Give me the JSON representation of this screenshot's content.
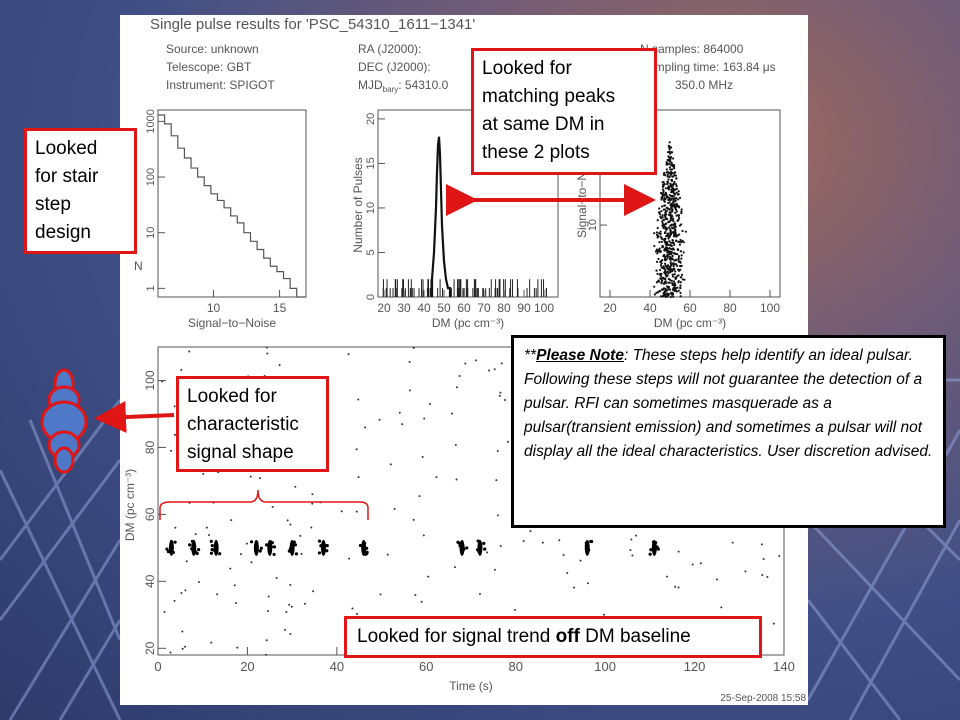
{
  "header": {
    "title": "Single pulse results for 'PSC_54310_1611−1341'",
    "left_info": [
      "Source: unknown",
      "Telescope: GBT",
      "Instrument: SPIGOT"
    ],
    "mid_info": [
      "RA (J2000):",
      "DEC (J2000):",
      "MJD"
    ],
    "mjd_sub": "bary",
    "mjd_value": ": 54310.0",
    "right_info": [
      "N samples: 864000",
      "Sampling time: 163.84 μs",
      "350.0 MHz"
    ]
  },
  "timestamp": "25-Sep-2008 15:58",
  "callouts": {
    "stair": [
      "Looked",
      "for stair",
      "step",
      "design"
    ],
    "peaks": [
      "Looked for",
      "matching peaks",
      "at same DM in",
      "these 2 plots"
    ],
    "shape": [
      "Looked for",
      "characteristic",
      "signal shape"
    ],
    "trend_prefix": "Looked for signal trend ",
    "trend_bold": "off",
    "trend_suffix": " DM baseline"
  },
  "note": {
    "prefix": "**",
    "highlight": "Please Note",
    "body": ":  These steps help identify an ideal pulsar.  Following these steps will not guarantee the detection of a pulsar.  RFI can sometimes masquerade as a pulsar(transient emission) and sometimes a pulsar will not display all the ideal characteristics.  User discretion advised."
  },
  "chart_data": [
    {
      "type": "line",
      "xlabel": "Signal−to−Noise",
      "ylabel": "N",
      "y_scale": "log",
      "x_ticks": [
        "10",
        "15"
      ],
      "y_ticks": [
        "1",
        "10",
        "100",
        "1000"
      ],
      "xlim": [
        5.8,
        17
      ],
      "ylim": [
        0.7,
        1600
      ],
      "x": [
        5.8,
        6.3,
        6.8,
        7.3,
        7.8,
        8.3,
        8.8,
        9.3,
        9.8,
        10.3,
        10.8,
        11.3,
        11.8,
        12.3,
        12.8,
        13.3,
        13.8,
        14.3,
        14.8,
        15.3,
        15.8,
        16.3,
        17
      ],
      "y": [
        1300,
        900,
        550,
        330,
        220,
        145,
        100,
        70,
        50,
        38,
        28,
        20,
        15,
        10,
        7,
        5,
        3.5,
        2.5,
        2,
        1.5,
        1,
        0.7,
        0.7
      ]
    },
    {
      "type": "bar",
      "xlabel": "DM (pc cm⁻³)",
      "ylabel": "Number of Pulses",
      "x_ticks": [
        "20",
        "30",
        "40",
        "50",
        "60",
        "70",
        "80",
        "90",
        "100"
      ],
      "y_ticks": [
        "0",
        "5",
        "10",
        "15",
        "20"
      ],
      "xlim": [
        17,
        107
      ],
      "ylim": [
        0,
        21
      ],
      "x": [
        44,
        45,
        46,
        46.5,
        47,
        47.5,
        48,
        48.5,
        49,
        50,
        51,
        52,
        53
      ],
      "y": [
        2,
        5,
        10,
        14,
        17,
        18,
        16,
        12,
        8,
        4,
        2,
        1,
        1
      ]
    },
    {
      "type": "scatter",
      "xlabel": "DM (pc cm⁻³)",
      "ylabel": "Signal−to−N",
      "x_ticks": [
        "20",
        "40",
        "60",
        "80",
        "100"
      ],
      "y_ticks": [
        "10"
      ],
      "xlim": [
        15,
        105
      ],
      "ylim": [
        5,
        18
      ],
      "note": "dense peak of pulses centered at DM ~50"
    },
    {
      "type": "scatter",
      "xlabel": "Time (s)",
      "ylabel": "DM (pc cm⁻³)",
      "x_ticks": [
        "0",
        "20",
        "40",
        "60",
        "80",
        "100",
        "120",
        "140"
      ],
      "y_ticks": [
        "20",
        "40",
        "60",
        "80",
        "100"
      ],
      "xlim": [
        0,
        140
      ],
      "ylim": [
        18,
        110
      ],
      "clusters": [
        {
          "time": 3,
          "dm": 50
        },
        {
          "time": 8,
          "dm": 50
        },
        {
          "time": 13,
          "dm": 50
        },
        {
          "time": 22,
          "dm": 50
        },
        {
          "time": 25,
          "dm": 50
        },
        {
          "time": 30,
          "dm": 50
        },
        {
          "time": 37,
          "dm": 50
        },
        {
          "time": 46,
          "dm": 50
        },
        {
          "time": 68,
          "dm": 50
        },
        {
          "time": 72,
          "dm": 50
        },
        {
          "time": 96,
          "dm": 50
        },
        {
          "time": 111,
          "dm": 50
        }
      ]
    }
  ]
}
